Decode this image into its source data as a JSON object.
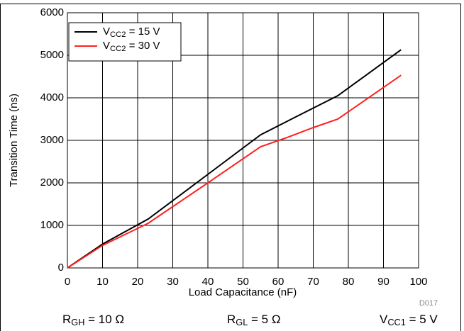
{
  "chart_data": {
    "type": "line",
    "x_label": "Load Capacitance (nF)",
    "y_label": "Transition Time (ns)",
    "xlim": [
      0,
      100
    ],
    "xticks": [
      0,
      10,
      20,
      30,
      40,
      50,
      60,
      70,
      80,
      90,
      100
    ],
    "ylim": [
      0,
      6000
    ],
    "yticks": [
      0,
      1000,
      2000,
      3000,
      4000,
      5000,
      6000
    ],
    "grid": true,
    "legend": "top-left",
    "series": [
      {
        "name": "VCC2 = 15 V",
        "color": "#000000",
        "x": [
          0,
          10,
          23,
          40,
          55,
          65,
          77,
          95
        ],
        "values": [
          0,
          560,
          1150,
          2200,
          3130,
          3550,
          4050,
          5130
        ]
      },
      {
        "name": "VCC2 = 30 V",
        "color": "#ff2020",
        "x": [
          0,
          10,
          23,
          40,
          55,
          62,
          70,
          77,
          95
        ],
        "values": [
          0,
          530,
          1050,
          2000,
          2850,
          3050,
          3300,
          3500,
          4530
        ]
      }
    ],
    "annotations": [
      "RGH = 10 Ω",
      "RGL = 5 Ω",
      "VCC1 = 5 V"
    ],
    "figure_id": "D017"
  }
}
